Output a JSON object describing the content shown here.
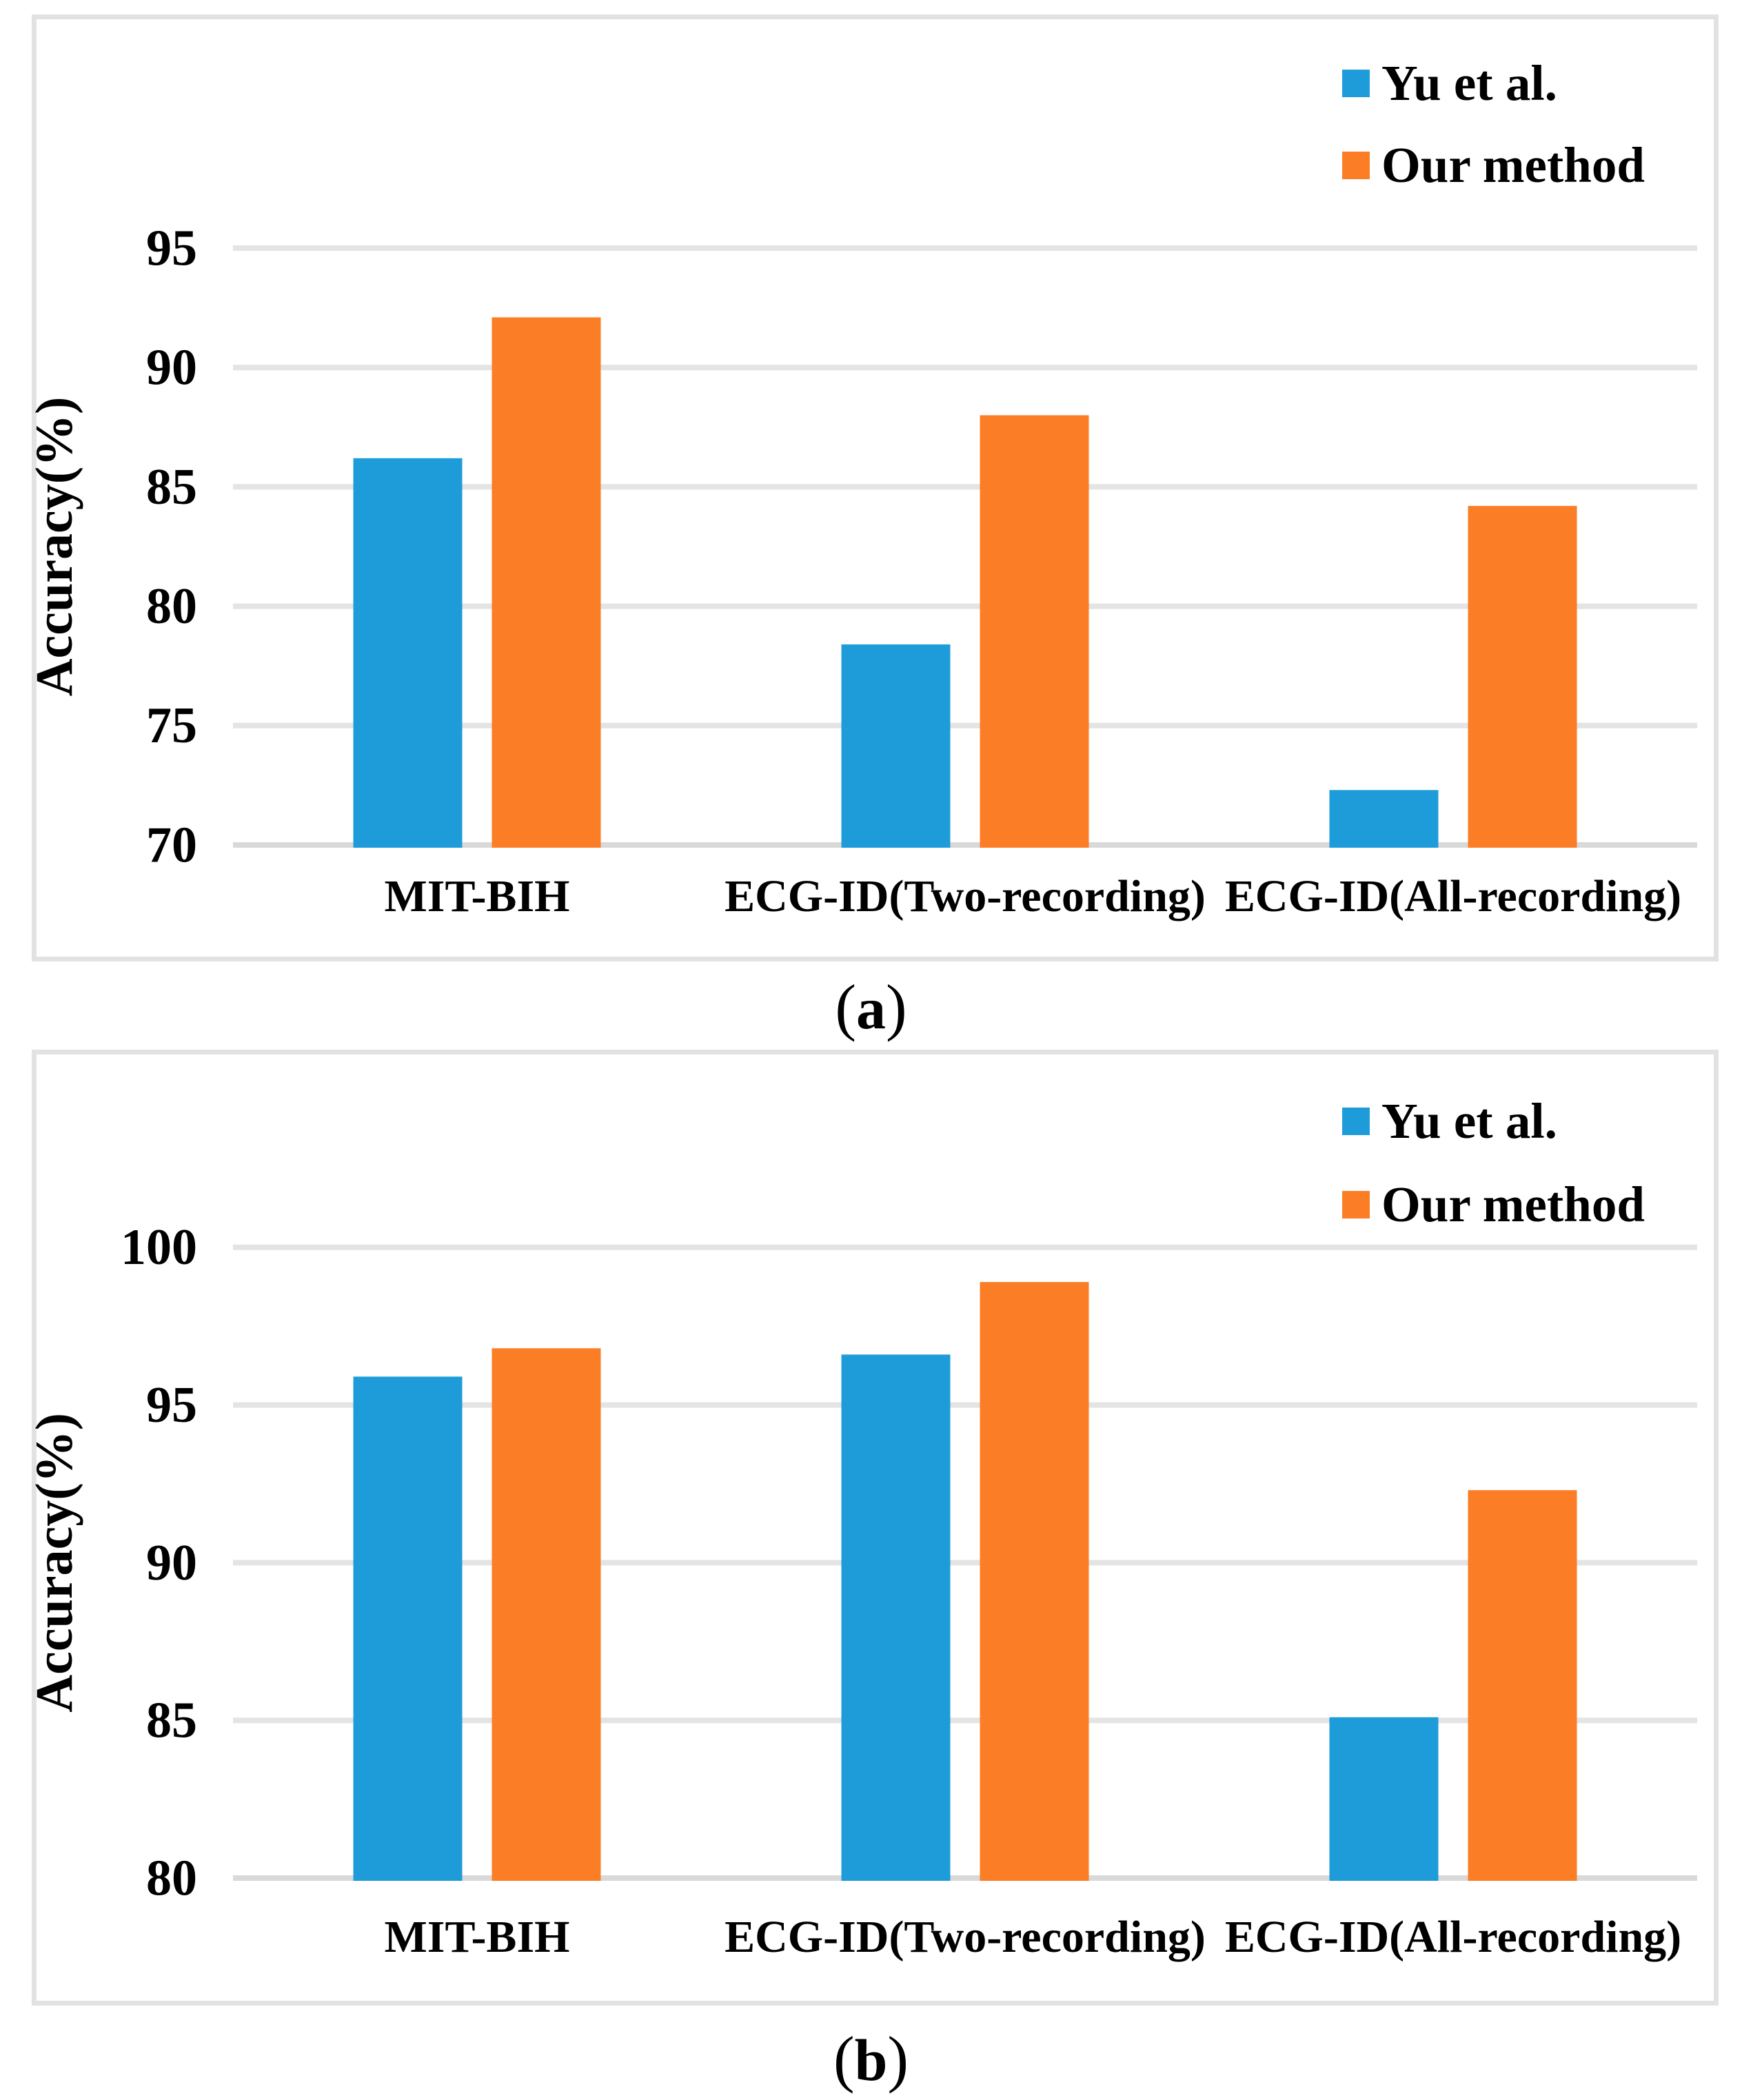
{
  "figure": {
    "panels": [
      {
        "id": "a",
        "caption": {
          "open": "(",
          "letter": "a",
          "close": ")"
        }
      },
      {
        "id": "b",
        "caption": {
          "open": "(",
          "letter": "b",
          "close": ")"
        }
      }
    ],
    "colors": {
      "series1": "#1E9CD9",
      "series2": "#FB7D26",
      "gridline": "#E4E4E4",
      "axis_line": "#D9D9D9",
      "panel_border": "#E2E2E2",
      "text": "#000000"
    }
  },
  "chart_data": [
    {
      "type": "bar",
      "title": "",
      "categories": [
        "MIT-BIH",
        "ECG-ID(Two-recording)",
        "ECG-ID(All-recording)"
      ],
      "series": [
        {
          "name": "Yu et al.",
          "color": "#1E9CD9",
          "values": [
            86.2,
            78.4,
            72.3
          ]
        },
        {
          "name": "Our method",
          "color": "#FB7D26",
          "values": [
            92.1,
            88.0,
            84.2
          ]
        }
      ],
      "xlabel": "",
      "ylabel": "Accuracy(%)",
      "ylim": [
        70,
        95
      ],
      "yticks": [
        70,
        75,
        80,
        85,
        90,
        95
      ],
      "grid": true,
      "legend_position": "top-right",
      "bars_start_at": 70
    },
    {
      "type": "bar",
      "title": "",
      "categories": [
        "MIT-BIH",
        "ECG-ID(Two-recording)",
        "ECG-ID(All-recording)"
      ],
      "series": [
        {
          "name": "Yu et al.",
          "color": "#1E9CD9",
          "values": [
            95.9,
            96.6,
            85.1
          ]
        },
        {
          "name": "Our method",
          "color": "#FB7D26",
          "values": [
            96.8,
            98.9,
            92.3
          ]
        }
      ],
      "xlabel": "",
      "ylabel": "Accuracy(%)",
      "ylim": [
        80,
        100
      ],
      "yticks": [
        80,
        85,
        90,
        95,
        100
      ],
      "grid": true,
      "legend_position": "top-right",
      "bars_start_at": 80
    }
  ]
}
